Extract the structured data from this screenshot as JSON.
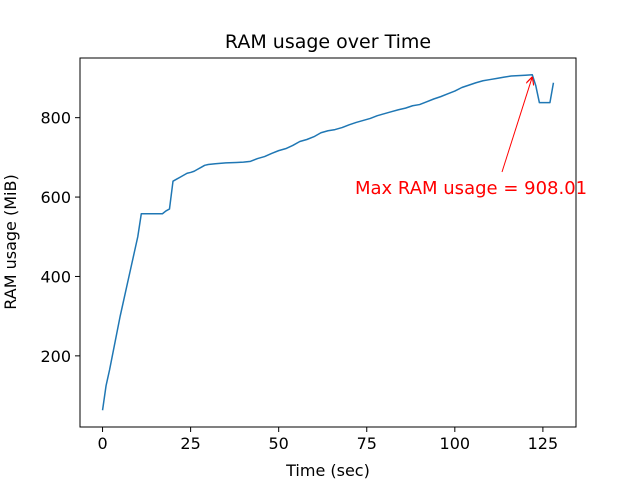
{
  "chart_data": {
    "type": "line",
    "title": "RAM usage over Time",
    "x_label": "Time (sec)",
    "y_label": "RAM usage (MiB)",
    "x": [
      0,
      1,
      2,
      3,
      4,
      5,
      6,
      7,
      8,
      9,
      10,
      11,
      12,
      13,
      14,
      15,
      16,
      17,
      18,
      19,
      20,
      21,
      22,
      23,
      24,
      25,
      26,
      27,
      28,
      29,
      30,
      32,
      35,
      38,
      40,
      42,
      44,
      46,
      48,
      50,
      52,
      54,
      56,
      58,
      60,
      62,
      64,
      66,
      68,
      70,
      72,
      74,
      76,
      78,
      80,
      82,
      84,
      86,
      88,
      90,
      92,
      94,
      96,
      98,
      100,
      102,
      104,
      106,
      108,
      110,
      112,
      114,
      116,
      118,
      120,
      122,
      123,
      124,
      125,
      126,
      127,
      128
    ],
    "values": [
      63,
      125,
      165,
      210,
      255,
      300,
      340,
      380,
      420,
      460,
      500,
      558,
      558,
      558,
      558,
      558,
      558,
      558,
      565,
      570,
      640,
      645,
      650,
      655,
      660,
      662,
      665,
      670,
      675,
      680,
      682,
      684,
      686,
      687,
      688,
      690,
      697,
      702,
      710,
      717,
      722,
      730,
      740,
      745,
      752,
      762,
      767,
      770,
      775,
      782,
      788,
      793,
      798,
      805,
      810,
      815,
      820,
      824,
      830,
      833,
      840,
      847,
      853,
      860,
      867,
      876,
      882,
      888,
      893,
      896,
      899,
      902,
      905,
      906,
      907,
      908.01,
      880,
      838,
      838,
      838,
      838,
      888
    ],
    "color": "#1f77b4",
    "annotation": {
      "text": "Max RAM usage = 908.01",
      "color": "red"
    },
    "xlim": [
      -6.4,
      134.4
    ],
    "xticks": [
      0,
      25,
      50,
      75,
      100,
      125
    ],
    "ylim": [
      20.8,
      950.3
    ],
    "yticks": [
      200,
      400,
      600,
      800
    ],
    "grid": false
  }
}
